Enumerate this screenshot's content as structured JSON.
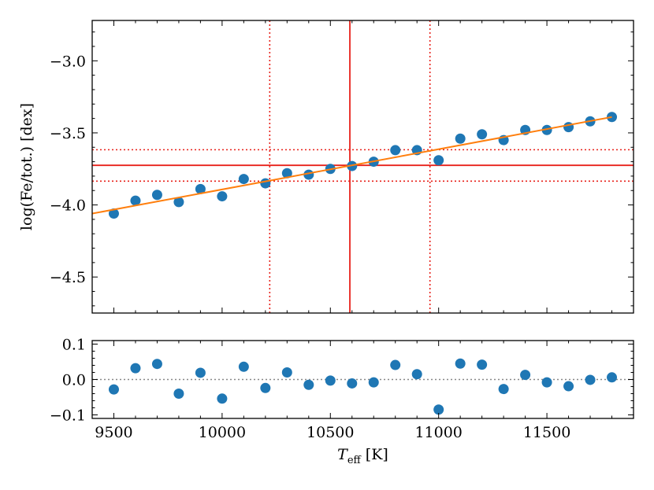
{
  "chart_data": [
    {
      "panel": "top",
      "type": "scatter",
      "ylabel": "log(Fe/tot.)  [dex]",
      "xlim": [
        9400,
        11900
      ],
      "ylim": [
        -4.75,
        -2.72
      ],
      "yticks": [
        -3.0,
        -3.5,
        -4.0,
        -4.5
      ],
      "ytick_labels": [
        "−3.0",
        "−3.5",
        "−4.0",
        "−4.5"
      ],
      "series": [
        {
          "name": "measurements",
          "color": "#1f77b4",
          "x": [
            9500,
            9600,
            9700,
            9800,
            9900,
            10000,
            10100,
            10200,
            10300,
            10400,
            10500,
            10600,
            10700,
            10800,
            10900,
            11000,
            11100,
            11200,
            11300,
            11400,
            11500,
            11600,
            11700,
            11800
          ],
          "y": [
            -4.06,
            -3.97,
            -3.93,
            -3.98,
            -3.89,
            -3.94,
            -3.82,
            -3.85,
            -3.78,
            -3.79,
            -3.75,
            -3.73,
            -3.7,
            -3.62,
            -3.62,
            -3.69,
            -3.54,
            -3.51,
            -3.55,
            -3.48,
            -3.48,
            -3.46,
            -3.42,
            -3.39
          ]
        },
        {
          "name": "linear fit",
          "type": "line",
          "color": "#ff7f0e",
          "x": [
            9400,
            11800
          ],
          "y": [
            -4.06,
            -3.39
          ]
        }
      ],
      "reference_lines": {
        "color": "#e8211a",
        "vertical_solid": 10590,
        "vertical_dotted": [
          10220,
          10960
        ],
        "horizontal_solid": -3.725,
        "horizontal_dotted": [
          -3.617,
          -3.835
        ]
      }
    },
    {
      "panel": "bottom",
      "type": "scatter",
      "xlabel": "T_eff [K]",
      "xlabel_main": "T",
      "xlabel_sub": "eff",
      "xlabel_unit": "[K]",
      "xlim": [
        9400,
        11900
      ],
      "ylim": [
        -0.11,
        0.11
      ],
      "xticks": [
        9500,
        10000,
        10500,
        11000,
        11500
      ],
      "xtick_labels": [
        "9500",
        "10000",
        "10500",
        "11000",
        "11500"
      ],
      "yticks": [
        0.1,
        0.0,
        -0.1
      ],
      "ytick_labels": [
        "0.1",
        "0.0",
        "−0.1"
      ],
      "zero_line_color": "#888888",
      "series": [
        {
          "name": "residuals",
          "color": "#1f77b4",
          "x": [
            9500,
            9600,
            9700,
            9800,
            9900,
            10000,
            10100,
            10200,
            10300,
            10400,
            10500,
            10600,
            10700,
            10800,
            10900,
            11000,
            11100,
            11200,
            11300,
            11400,
            11500,
            11600,
            11700,
            11800
          ],
          "y": [
            -0.028,
            0.032,
            0.044,
            -0.04,
            0.019,
            -0.054,
            0.036,
            -0.024,
            0.02,
            -0.015,
            -0.003,
            -0.011,
            -0.008,
            0.041,
            0.015,
            -0.085,
            0.045,
            0.042,
            -0.027,
            0.013,
            -0.008,
            -0.019,
            -0.001,
            0.006
          ]
        }
      ]
    }
  ]
}
